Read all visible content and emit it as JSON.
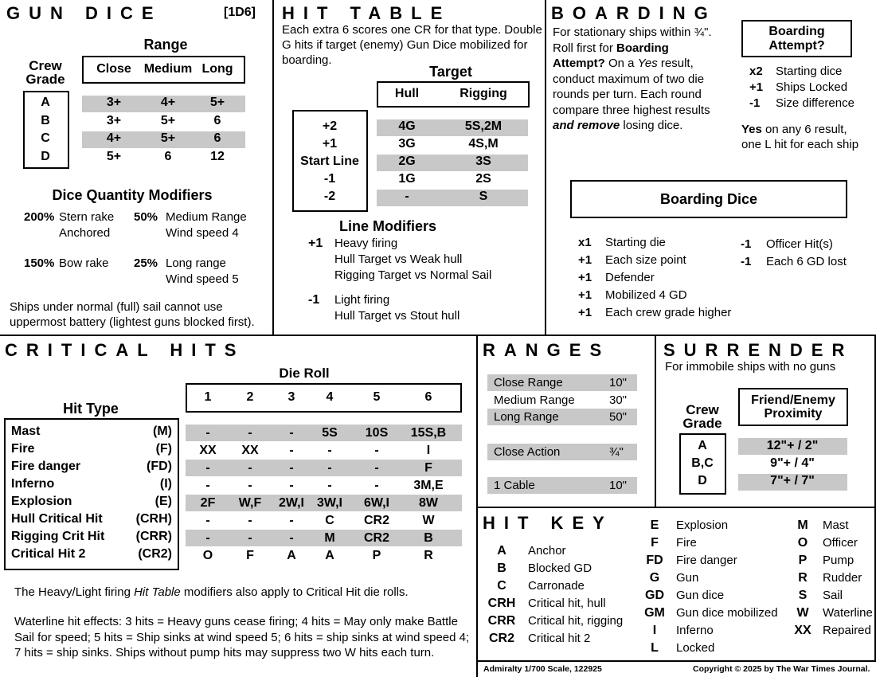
{
  "gun_dice": {
    "title": "GUN DICE",
    "die": "[1D6]",
    "range_label": "Range",
    "crew_grade_label": "Crew Grade",
    "columns": [
      "Close",
      "Medium",
      "Long"
    ],
    "rows": [
      {
        "grade": "A",
        "values": [
          "3+",
          "4+",
          "5+"
        ]
      },
      {
        "grade": "B",
        "values": [
          "3+",
          "5+",
          "6"
        ]
      },
      {
        "grade": "C",
        "values": [
          "4+",
          "5+",
          "6"
        ]
      },
      {
        "grade": "D",
        "values": [
          "5+",
          "6",
          "12"
        ]
      }
    ],
    "modifiers_title": "Dice Quantity Modifiers",
    "modifiers": [
      {
        "value": "200%",
        "text": [
          "Stern rake",
          "Anchored"
        ]
      },
      {
        "value": "50%",
        "text": [
          "Medium Range",
          "Wind speed 4"
        ]
      },
      {
        "value": "150%",
        "text": [
          "Bow rake"
        ]
      },
      {
        "value": "25%",
        "text": [
          "Long range",
          "Wind speed 5"
        ]
      }
    ],
    "note": "Ships under normal (full) sail cannot use uppermost battery (lightest guns blocked first)."
  },
  "hit_table": {
    "title": "HIT TABLE",
    "description": "Each extra 6 scores one CR for that type. Double G hits if target (enemy) Gun Dice mobilized for boarding.",
    "target_label": "Target",
    "columns": [
      "Hull",
      "Rigging"
    ],
    "rows": [
      {
        "line": "+2",
        "values": [
          "4G",
          "5S,2M"
        ]
      },
      {
        "line": "+1",
        "values": [
          "3G",
          "4S,M"
        ]
      },
      {
        "line": "Start Line",
        "values": [
          "2G",
          "3S"
        ]
      },
      {
        "line": "-1",
        "values": [
          "1G",
          "2S"
        ]
      },
      {
        "line": "-2",
        "values": [
          "-",
          "S"
        ]
      }
    ],
    "line_modifiers_title": "Line Modifiers",
    "line_modifiers": [
      {
        "value": "+1",
        "text": [
          "Heavy firing",
          "Hull Target vs Weak hull",
          "Rigging Target vs Normal Sail"
        ]
      },
      {
        "value": "-1",
        "text": [
          "Light firing",
          "Hull Target vs Stout hull"
        ]
      }
    ]
  },
  "boarding": {
    "title": "BOARDING",
    "desc_1": "For stationary ships within ¾\". Roll first for ",
    "desc_bold": "Boarding Attempt?",
    "desc_2": "  On a ",
    "desc_italic": "Yes",
    "desc_3": " result, conduct maximum of two die rounds per turn.  Each round compare three highest results ",
    "desc_bold_italic": "and remove",
    "desc_4": " losing dice.",
    "attempt_title": "Boarding Attempt?",
    "attempt_modifiers": [
      {
        "value": "x2",
        "text": "Starting dice"
      },
      {
        "value": "+1",
        "text": "Ships Locked"
      },
      {
        "value": "-1",
        "text": "Size difference"
      }
    ],
    "yes_bold": "Yes",
    "yes_text": " on any 6 result, one L hit for each ship",
    "dice_title": "Boarding Dice",
    "dice_modifiers_left": [
      {
        "value": "x1",
        "text": "Starting die"
      },
      {
        "value": "+1",
        "text": "Each size point"
      },
      {
        "value": "+1",
        "text": "Defender"
      },
      {
        "value": "+1",
        "text": "Mobilized 4 GD"
      },
      {
        "value": "+1",
        "text": "Each crew grade higher"
      }
    ],
    "dice_modifiers_right": [
      {
        "value": "-1",
        "text": "Officer Hit(s)"
      },
      {
        "value": "-1",
        "text": "Each 6 GD lost"
      }
    ]
  },
  "critical_hits": {
    "title": "CRITICAL HITS",
    "die_roll_label": "Die Roll",
    "hit_type_label": "Hit Type",
    "columns": [
      "1",
      "2",
      "3",
      "4",
      "5",
      "6"
    ],
    "rows": [
      {
        "name": "Mast",
        "abbr": "(M)",
        "values": [
          "-",
          "-",
          "-",
          "5S",
          "10S",
          "15S,B"
        ]
      },
      {
        "name": "Fire",
        "abbr": "(F)",
        "values": [
          "XX",
          "XX",
          "-",
          "-",
          "-",
          "I"
        ]
      },
      {
        "name": "Fire danger",
        "abbr": "(FD)",
        "values": [
          "-",
          "-",
          "-",
          "-",
          "-",
          "F"
        ]
      },
      {
        "name": "Inferno",
        "abbr": "(I)",
        "values": [
          "-",
          "-",
          "-",
          "-",
          "-",
          "3M,E"
        ]
      },
      {
        "name": "Explosion",
        "abbr": "(E)",
        "values": [
          "2F",
          "W,F",
          "2W,I",
          "3W,I",
          "6W,I",
          "8W"
        ]
      },
      {
        "name": "Hull Critical Hit",
        "abbr": "(CRH)",
        "values": [
          "-",
          "-",
          "-",
          "C",
          "CR2",
          "W"
        ]
      },
      {
        "name": "Rigging Crit Hit",
        "abbr": "(CRR)",
        "values": [
          "-",
          "-",
          "-",
          "M",
          "CR2",
          "B"
        ]
      },
      {
        "name": "Critical Hit 2",
        "abbr": "(CR2)",
        "values": [
          "O",
          "F",
          "A",
          "A",
          "P",
          "R"
        ]
      }
    ],
    "note_1": "The Heavy/Light firing ",
    "note_italic": "Hit Table",
    "note_2": " modifiers also apply to Critical Hit die rolls.",
    "waterline": "Waterline hit effects: 3 hits = Heavy guns cease firing; 4 hits = May only make Battle Sail for speed;  5 hits = Ship sinks at wind speed 5; 6 hits = ship sinks at wind speed 4; 7 hits = ship sinks.  Ships without pump hits may suppress two W hits each turn."
  },
  "ranges": {
    "title": "RANGES",
    "rows": [
      {
        "label": "Close Range",
        "value": "10\""
      },
      {
        "label": "Medium Range",
        "value": "30\""
      },
      {
        "label": "Long Range",
        "value": "50\""
      },
      {
        "label": "Close Action",
        "value": "¾\""
      },
      {
        "label": "1 Cable",
        "value": "10\""
      }
    ]
  },
  "surrender": {
    "title": "SURRENDER",
    "subtitle": "For immobile ships with no guns",
    "crew_grade_label": "Crew Grade",
    "proximity_label": "Friend/Enemy Proximity",
    "rows": [
      {
        "grade": "A",
        "value": "12\"+ / 2\""
      },
      {
        "grade": "B,C",
        "value": "9\"+ / 4\""
      },
      {
        "grade": "D",
        "value": "7\"+ / 7\""
      }
    ]
  },
  "hit_key": {
    "title": "HIT KEY",
    "col1": [
      {
        "abbr": "A",
        "text": "Anchor"
      },
      {
        "abbr": "B",
        "text": "Blocked GD"
      },
      {
        "abbr": "C",
        "text": "Carronade"
      },
      {
        "abbr": "CRH",
        "text": "Critical hit, hull"
      },
      {
        "abbr": "CRR",
        "text": "Critical hit, rigging"
      },
      {
        "abbr": "CR2",
        "text": "Critical hit 2"
      }
    ],
    "col2": [
      {
        "abbr": "E",
        "text": "Explosion"
      },
      {
        "abbr": "F",
        "text": "Fire"
      },
      {
        "abbr": "FD",
        "text": "Fire danger"
      },
      {
        "abbr": "G",
        "text": "Gun"
      },
      {
        "abbr": "GD",
        "text": "Gun dice"
      },
      {
        "abbr": "GM",
        "text": "Gun dice mobilized"
      },
      {
        "abbr": "I",
        "text": "Inferno"
      },
      {
        "abbr": "L",
        "text": "Locked"
      }
    ],
    "col3": [
      {
        "abbr": "M",
        "text": "Mast"
      },
      {
        "abbr": "O",
        "text": "Officer"
      },
      {
        "abbr": "P",
        "text": "Pump"
      },
      {
        "abbr": "R",
        "text": "Rudder"
      },
      {
        "abbr": "S",
        "text": "Sail"
      },
      {
        "abbr": "W",
        "text": "Waterline"
      },
      {
        "abbr": "XX",
        "text": "Repaired"
      }
    ]
  },
  "footer": {
    "left": "Admiralty 1/700 Scale,  122925",
    "right": "Copyright ©  2025 by The War Times Journal."
  },
  "colors": {
    "shade": "#c8c8c8",
    "ink": "#000000"
  }
}
